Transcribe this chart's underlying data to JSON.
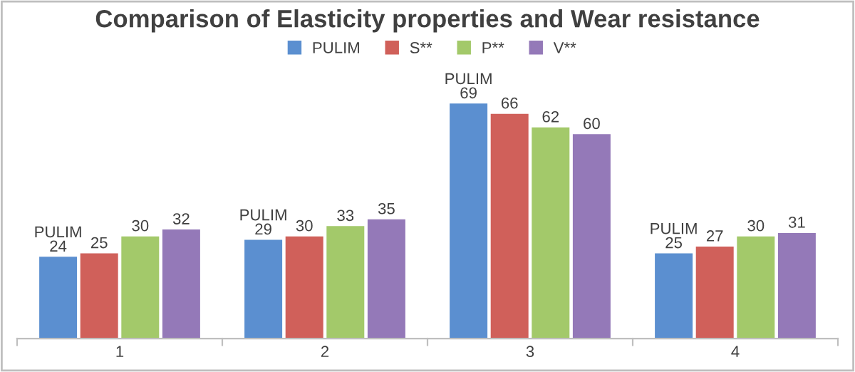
{
  "chart_data": {
    "type": "bar",
    "title": "Comparison of Elasticity properties and Wear resistance",
    "categories": [
      "1",
      "2",
      "3",
      "4"
    ],
    "series": [
      {
        "name": "PULIM",
        "color": "#5b8fd0",
        "values": [
          24,
          29,
          69,
          25
        ],
        "value_labels": [
          "PULIM\n24",
          "PULIM\n29",
          "PULIM\n69",
          "PULIM\n25"
        ]
      },
      {
        "name": "S**",
        "color": "#d0605a",
        "values": [
          25,
          30,
          66,
          27
        ],
        "value_labels": [
          "25",
          "30",
          "66",
          "27"
        ]
      },
      {
        "name": "P**",
        "color": "#a3c96a",
        "values": [
          30,
          33,
          62,
          30
        ],
        "value_labels": [
          "30",
          "33",
          "62",
          "30"
        ]
      },
      {
        "name": "V**",
        "color": "#9479b8",
        "values": [
          32,
          35,
          60,
          31
        ],
        "value_labels": [
          "32",
          "35",
          "60",
          "31"
        ]
      }
    ],
    "legend": "top"
  }
}
